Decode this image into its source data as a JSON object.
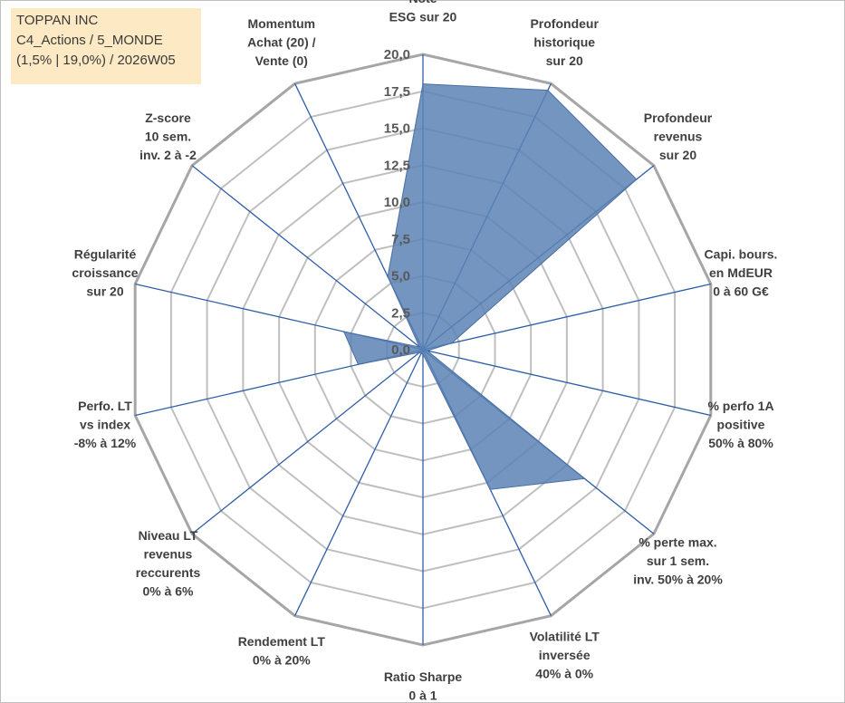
{
  "chart_data": {
    "type": "radar",
    "title_lines": [
      "TOPPAN INC",
      "C4_Actions / 5_MONDE",
      "(1,5% | 19,0%) / 2026W05"
    ],
    "r_range": [
      0,
      20
    ],
    "tick_values": [
      0,
      2.5,
      5,
      7.5,
      10,
      12.5,
      15,
      17.5,
      20
    ],
    "tick_labels": [
      "0,0",
      "2,5",
      "5,0",
      "7,5",
      "10,0",
      "12,5",
      "15,0",
      "17,5",
      "20,0"
    ],
    "categories": [
      [
        "Note",
        "ESG sur 20"
      ],
      [
        "Profondeur",
        "historique",
        "sur 20"
      ],
      [
        "Profondeur",
        "revenus",
        "sur 20"
      ],
      [
        "Capi. bours.",
        "en MdEUR",
        "0 à 60 G€"
      ],
      [
        "% perfo 1A",
        "positive",
        "50% à 80%"
      ],
      [
        "% perte max.",
        "sur 1 sem.",
        "inv. 50% à 20%"
      ],
      [
        "Volatilité LT",
        "inversée",
        "40% à 0%"
      ],
      [
        "Ratio Sharpe",
        "0 à 1"
      ],
      [
        "Rendement LT",
        "0% à 20%"
      ],
      [
        "Niveau LT",
        "revenus",
        "reccurents",
        "0% à 6%"
      ],
      [
        "Perfo. LT",
        "vs index",
        "-8% à 12%"
      ],
      [
        "Régularité",
        "croissance",
        "sur 20"
      ],
      [
        "Z-score",
        "10 sem.",
        "inv. 2 à -2"
      ],
      [
        "Momentum",
        "Achat (20) /",
        "Vente (0)"
      ]
    ],
    "series": [
      {
        "name": "TOPPAN INC",
        "values": [
          18.0,
          19.5,
          18.5,
          2.0,
          0.3,
          14.0,
          10.5,
          0.3,
          0.3,
          0.3,
          4.5,
          5.5,
          0.3,
          5.5
        ],
        "color": "#5b82b5"
      }
    ],
    "grid": true,
    "spoke_color": "#2e5ea8",
    "grid_color": "#bfbfbf",
    "outer_ring_color": "#a6a6a6"
  }
}
